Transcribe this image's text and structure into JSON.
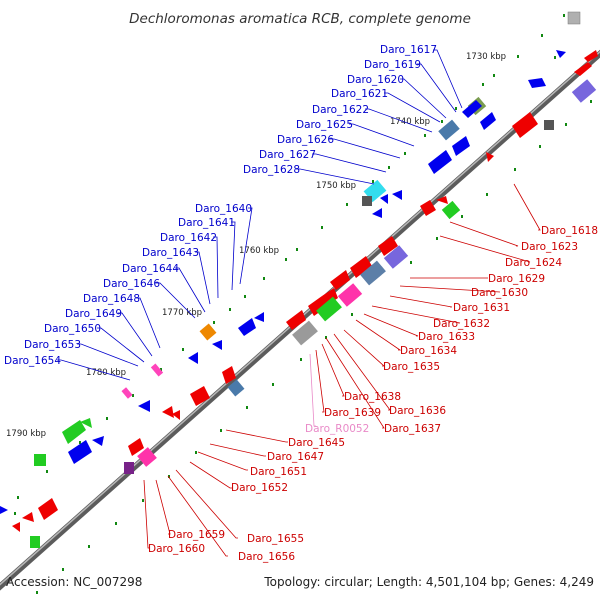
{
  "title": "Dechloromonas aromatica RCB, complete genome",
  "accession": "Accession: NC_007298",
  "summary": "Topology: circular; Length: 4,501,104 bp; Genes: 4,249",
  "colors": {
    "forward_gene": "#0000ee",
    "reverse_gene": "#ee0000",
    "rna_gene": "#ff33aa",
    "backbone": "#777777",
    "tick": "#118811"
  },
  "kbp_marks": [
    "1730 kbp",
    "1740 kbp",
    "1750 kbp",
    "1760 kbp",
    "1770 kbp",
    "1780 kbp",
    "1790 kbp"
  ],
  "upper_labels": [
    "Daro_1617",
    "Daro_1619",
    "Daro_1620",
    "Daro_1621",
    "Daro_1622",
    "Daro_1625",
    "Daro_1626",
    "Daro_1627",
    "Daro_1628",
    "Daro_1640",
    "Daro_1641",
    "Daro_1642",
    "Daro_1643",
    "Daro_1644",
    "Daro_1646",
    "Daro_1648",
    "Daro_1649",
    "Daro_1650",
    "Daro_1653",
    "Daro_1654"
  ],
  "lower_right_labels": [
    "Daro_1618",
    "Daro_1623",
    "Daro_1624",
    "Daro_1629",
    "Daro_1630",
    "Daro_1631",
    "Daro_1632",
    "Daro_1633",
    "Daro_1634",
    "Daro_1635",
    "Daro_1636",
    "Daro_1637",
    "Daro_1638",
    "Daro_1639"
  ],
  "rna_label": "Daro_R0052",
  "lower_left_labels": [
    "Daro_1645",
    "Daro_1647",
    "Daro_1651",
    "Daro_1652",
    "Daro_1655",
    "Daro_1656",
    "Daro_1659",
    "Daro_1660"
  ]
}
